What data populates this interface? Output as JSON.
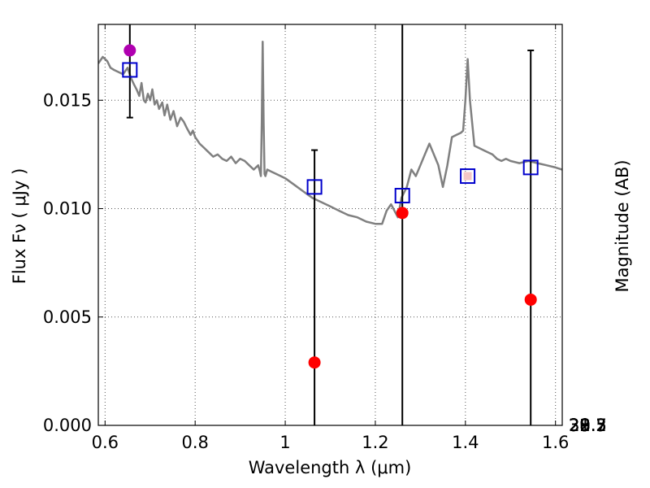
{
  "chart_data": {
    "type": "scatter",
    "xlabel": "Wavelength  λ (μm)",
    "ylabel": "Flux  Fν  ( μJy )",
    "ylabel_right": "Magnitude (AB)",
    "xlim": [
      0.585,
      1.615
    ],
    "ylim": [
      0.0,
      0.0185
    ],
    "grid": true,
    "x_ticks": [
      {
        "value": 0.6,
        "label": "0.6"
      },
      {
        "value": 0.8,
        "label": "0.8"
      },
      {
        "value": 1.0,
        "label": "1"
      },
      {
        "value": 1.2,
        "label": "1.2"
      },
      {
        "value": 1.4,
        "label": "1.4"
      },
      {
        "value": 1.6,
        "label": "1.6"
      }
    ],
    "y_ticks": [
      {
        "value": 0.0,
        "label": "0.000"
      },
      {
        "value": 0.005,
        "label": "0.005"
      },
      {
        "value": 0.01,
        "label": "0.010"
      },
      {
        "value": 0.015,
        "label": "0.015"
      }
    ],
    "right_ticks": [
      {
        "value": 28.3,
        "label": "28.3"
      },
      {
        "value": 28.5,
        "label": "28.5"
      },
      {
        "value": 28.7,
        "label": "28.7"
      },
      {
        "value": 29,
        "label": "29"
      },
      {
        "value": 29.2,
        "label": "29.2"
      },
      {
        "value": 29.5,
        "label": "29.5"
      },
      {
        "value": 30,
        "label": "30"
      },
      {
        "value": 30.5,
        "label": "30.5"
      },
      {
        "value": 31,
        "label": "31"
      },
      {
        "value": 32,
        "label": "32"
      }
    ],
    "colors": {
      "model": "#808080",
      "model_points": "#0000cc",
      "observed": "#ff0000",
      "purple": "#b000b0",
      "errorbar": "#000000",
      "grid": "#555555"
    },
    "model_spectrum": {
      "x": [
        0.585,
        0.595,
        0.6,
        0.605,
        0.612,
        0.62,
        0.63,
        0.64,
        0.65,
        0.658,
        0.665,
        0.67,
        0.676,
        0.681,
        0.686,
        0.69,
        0.695,
        0.7,
        0.705,
        0.71,
        0.715,
        0.72,
        0.727,
        0.732,
        0.738,
        0.745,
        0.752,
        0.76,
        0.768,
        0.775,
        0.782,
        0.79,
        0.795,
        0.8,
        0.81,
        0.82,
        0.83,
        0.84,
        0.85,
        0.86,
        0.87,
        0.88,
        0.89,
        0.9,
        0.91,
        0.92,
        0.93,
        0.94,
        0.944,
        0.946,
        0.948,
        0.95,
        0.952,
        0.954,
        0.956,
        0.96,
        0.97,
        0.98,
        0.99,
        1.0,
        1.02,
        1.04,
        1.06,
        1.08,
        1.1,
        1.12,
        1.14,
        1.16,
        1.18,
        1.2,
        1.215,
        1.225,
        1.235,
        1.245,
        1.25,
        1.258,
        1.27,
        1.28,
        1.29,
        1.3,
        1.31,
        1.32,
        1.33,
        1.34,
        1.35,
        1.36,
        1.37,
        1.38,
        1.39,
        1.395,
        1.4,
        1.405,
        1.41,
        1.42,
        1.43,
        1.44,
        1.45,
        1.46,
        1.47,
        1.48,
        1.49,
        1.5,
        1.52,
        1.54,
        1.56,
        1.58,
        1.6,
        1.615
      ],
      "y": [
        0.0167,
        0.017,
        0.0169,
        0.0168,
        0.0165,
        0.0164,
        0.0163,
        0.0162,
        0.0165,
        0.016,
        0.0157,
        0.0155,
        0.0152,
        0.0158,
        0.015,
        0.0149,
        0.0153,
        0.015,
        0.0155,
        0.0148,
        0.015,
        0.0146,
        0.0149,
        0.0143,
        0.0148,
        0.0141,
        0.0145,
        0.0138,
        0.0142,
        0.014,
        0.0137,
        0.0134,
        0.0136,
        0.0133,
        0.013,
        0.0128,
        0.0126,
        0.0124,
        0.0125,
        0.0123,
        0.0122,
        0.0124,
        0.0121,
        0.0123,
        0.0122,
        0.012,
        0.0118,
        0.012,
        0.0117,
        0.0115,
        0.014,
        0.0177,
        0.0139,
        0.0116,
        0.0115,
        0.0118,
        0.0117,
        0.0116,
        0.0115,
        0.0114,
        0.0111,
        0.0108,
        0.0105,
        0.0103,
        0.0101,
        0.0099,
        0.0097,
        0.0096,
        0.0094,
        0.0093,
        0.0093,
        0.0099,
        0.0102,
        0.0098,
        0.0096,
        0.0105,
        0.011,
        0.0118,
        0.0115,
        0.012,
        0.0125,
        0.013,
        0.0125,
        0.012,
        0.011,
        0.012,
        0.0133,
        0.0134,
        0.0135,
        0.0136,
        0.015,
        0.0169,
        0.015,
        0.0129,
        0.0128,
        0.0127,
        0.0126,
        0.0125,
        0.0123,
        0.0122,
        0.0123,
        0.0122,
        0.0121,
        0.0122,
        0.0121,
        0.012,
        0.0119,
        0.0118
      ]
    },
    "model_band_points": {
      "x": [
        0.655,
        1.065,
        1.26,
        1.405,
        1.545
      ],
      "y": [
        0.0164,
        0.011,
        0.0106,
        0.0115,
        0.0119
      ]
    },
    "observed_points": {
      "x": [
        1.065,
        1.26,
        1.545
      ],
      "y": [
        0.0029,
        0.0098,
        0.0058
      ],
      "yerr_low": [
        0.0029,
        0.0098,
        0.0058
      ],
      "yerr_high": [
        0.0127,
        0.0185,
        0.0173
      ]
    },
    "special_point": {
      "x": 0.655,
      "y": 0.0173,
      "yerr_low": 0.0142,
      "yerr_high": 0.0185
    },
    "faint_marker": {
      "x": 1.405,
      "y": 0.0115
    }
  }
}
